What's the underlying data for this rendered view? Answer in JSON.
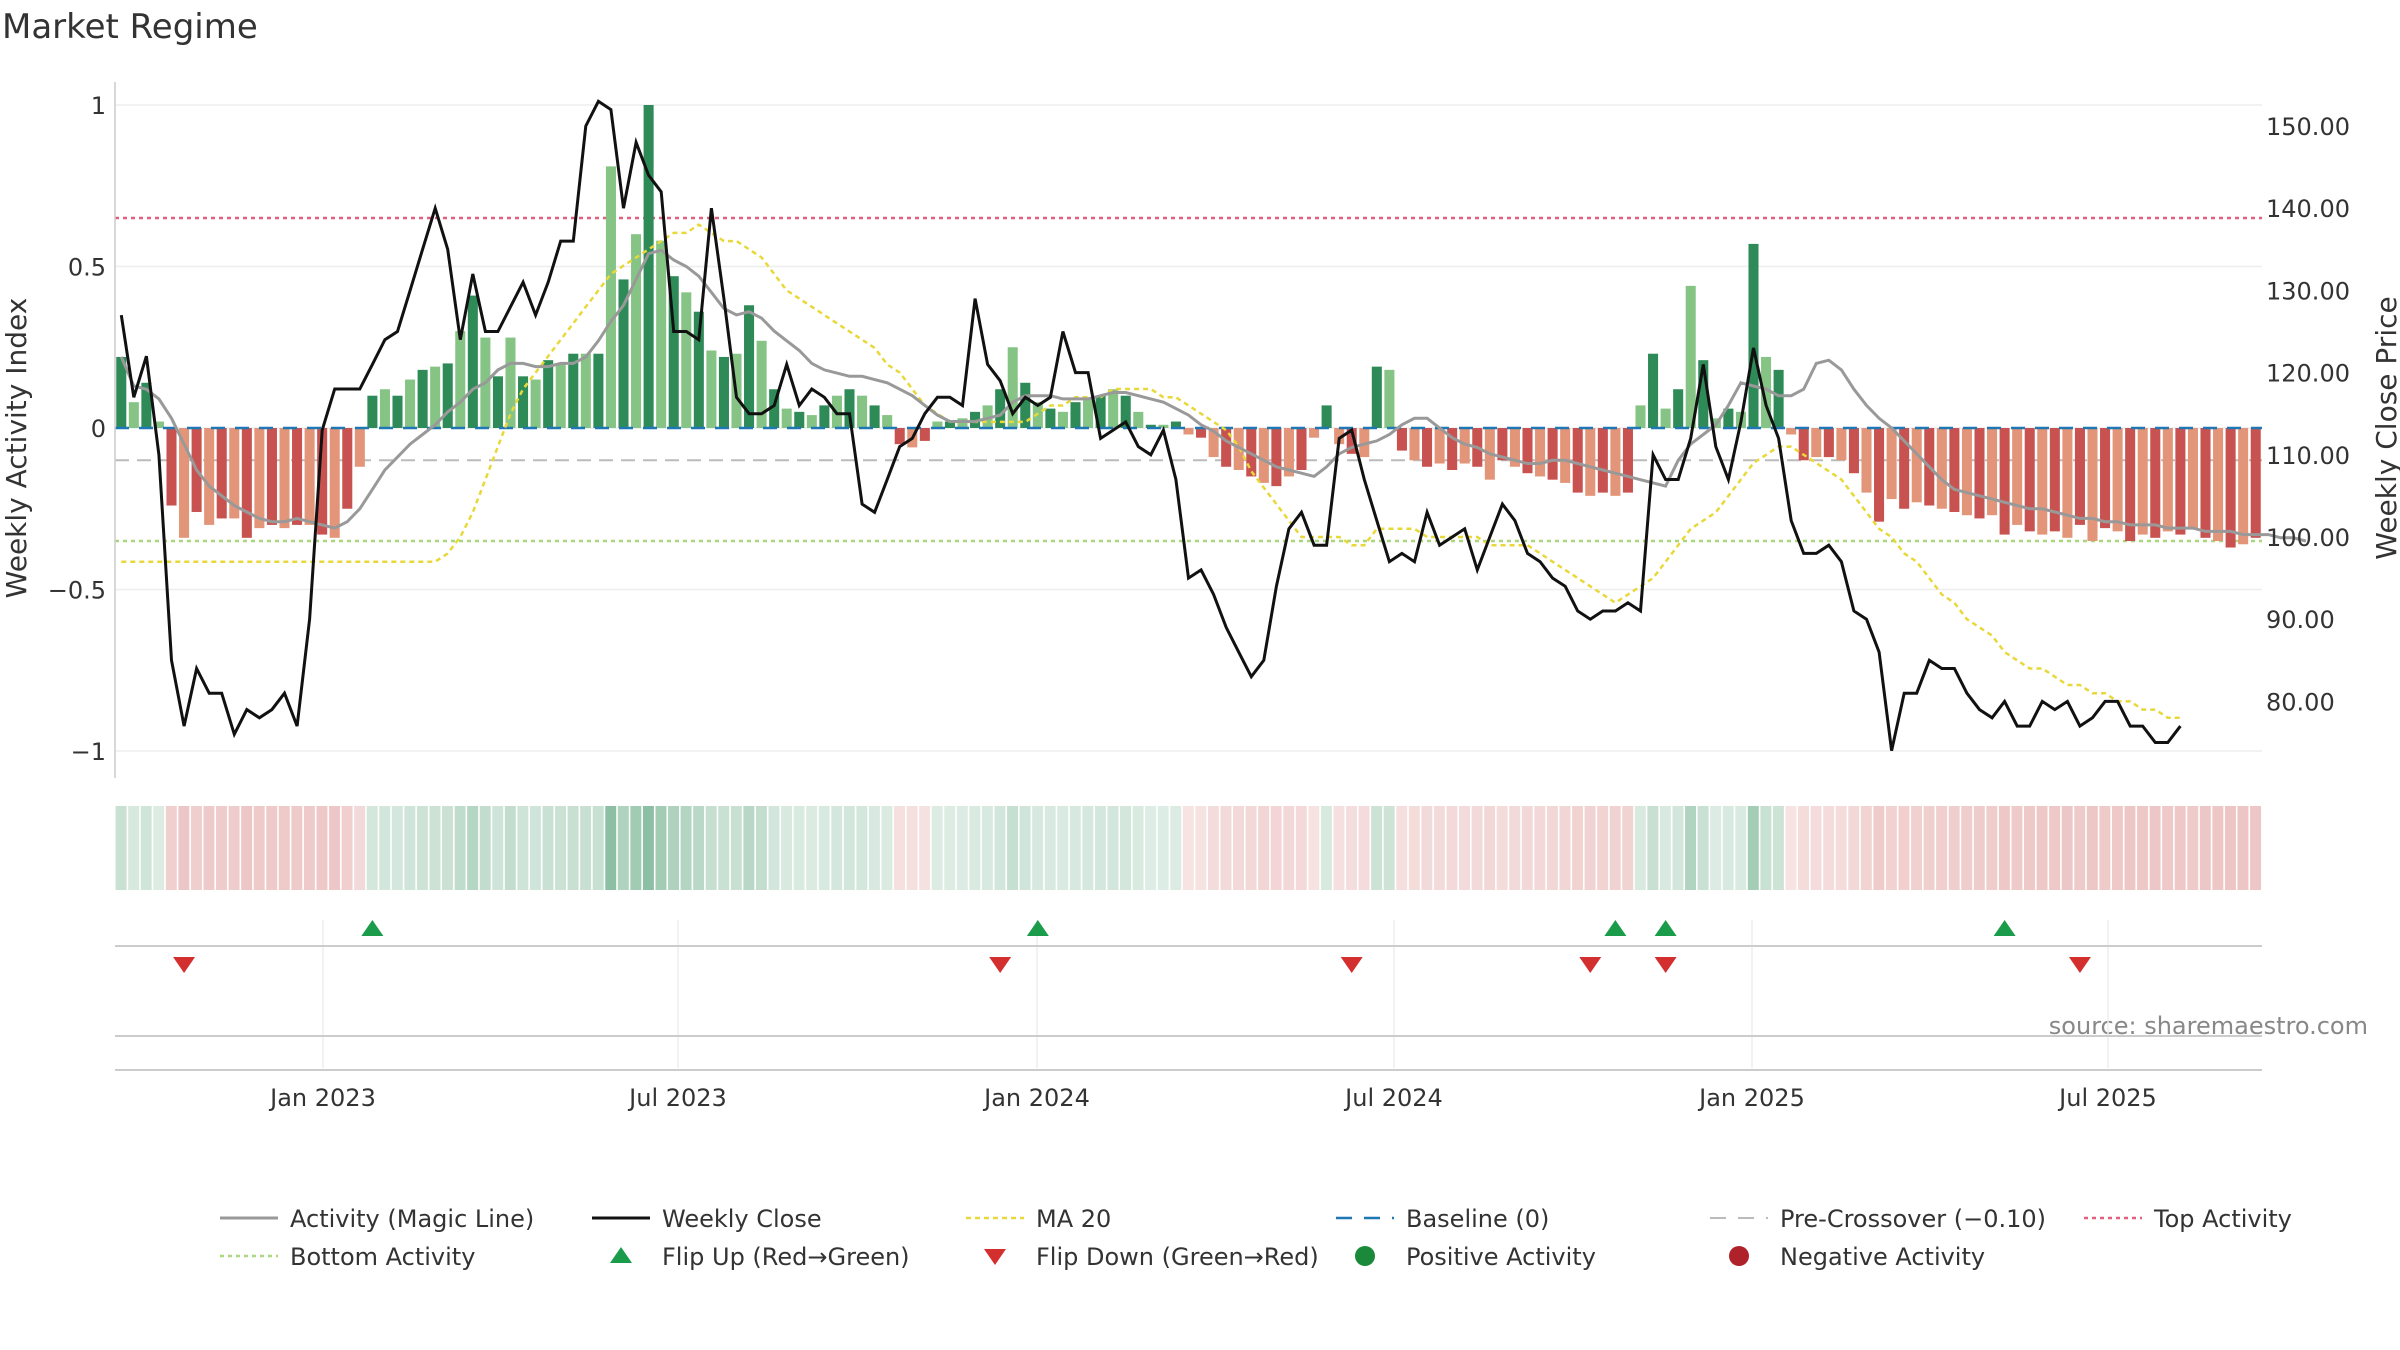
{
  "title": "Market Regime",
  "source": "source: sharemaestro.com",
  "colors": {
    "pos_strong": "#2e8b57",
    "pos_light": "#86c486",
    "neg_strong": "#c85250",
    "neg_light": "#e3957a",
    "close": "#111111",
    "magic": "#999999",
    "ma20": "#e8d83a",
    "baseline": "#1f77b4",
    "pre_cross": "#bbbbbb",
    "top": "#e0607e",
    "bottom": "#a8d87a",
    "flip_up": "#1a9c4a",
    "flip_down": "#d32f2f"
  },
  "chart_data": {
    "type": "bar",
    "x_labels": [
      "Jan 2023",
      "Jul 2023",
      "Jan 2024",
      "Jul 2024",
      "Jan 2025",
      "Jul 2025"
    ],
    "y_left": {
      "label": "Weekly Activity Index",
      "range": [
        -1.1,
        1.1
      ],
      "ticks": [
        {
          "v": 1,
          "t": "1"
        },
        {
          "v": 0.5,
          "t": "0.5"
        },
        {
          "v": 0,
          "t": "0"
        },
        {
          "v": -0.5,
          "t": "−0.5"
        },
        {
          "v": -1,
          "t": "−1"
        }
      ]
    },
    "y_right": {
      "label": "Weekly Close Price",
      "range": [
        70,
        153
      ],
      "ticks": [
        "150.00",
        "140.00",
        "130.00",
        "120.00",
        "110.00",
        "100.00",
        "90.00",
        "80.00"
      ]
    },
    "thresholds": {
      "top": 0.65,
      "bottom": -0.35,
      "pre_crossover": -0.1,
      "baseline": 0
    },
    "activity": [
      0.22,
      0.08,
      0.14,
      0.02,
      -0.24,
      -0.34,
      -0.26,
      -0.3,
      -0.28,
      -0.28,
      -0.34,
      -0.31,
      -0.3,
      -0.31,
      -0.3,
      -0.3,
      -0.33,
      -0.34,
      -0.25,
      -0.12,
      0.1,
      0.12,
      0.1,
      0.15,
      0.18,
      0.19,
      0.2,
      0.3,
      0.41,
      0.28,
      0.16,
      0.28,
      0.16,
      0.15,
      0.21,
      0.2,
      0.23,
      0.23,
      0.23,
      0.81,
      0.46,
      0.6,
      1.0,
      0.58,
      0.47,
      0.42,
      0.36,
      0.24,
      0.22,
      0.23,
      0.38,
      0.27,
      0.12,
      0.06,
      0.05,
      0.04,
      0.07,
      0.1,
      0.12,
      0.1,
      0.07,
      0.04,
      -0.05,
      -0.06,
      -0.04,
      0.02,
      0.02,
      0.03,
      0.05,
      0.07,
      0.12,
      0.25,
      0.14,
      0.08,
      0.06,
      0.05,
      0.08,
      0.09,
      0.1,
      0.12,
      0.1,
      0.05,
      0.01,
      0.01,
      0.02,
      -0.02,
      -0.03,
      -0.09,
      -0.12,
      -0.13,
      -0.15,
      -0.17,
      -0.18,
      -0.15,
      -0.13,
      -0.03,
      0.07,
      -0.05,
      -0.08,
      -0.09,
      0.19,
      0.18,
      -0.07,
      -0.1,
      -0.12,
      -0.11,
      -0.13,
      -0.11,
      -0.12,
      -0.16,
      -0.1,
      -0.12,
      -0.14,
      -0.15,
      -0.16,
      -0.17,
      -0.2,
      -0.21,
      -0.2,
      -0.21,
      -0.2,
      0.07,
      0.23,
      0.06,
      0.12,
      0.44,
      0.21,
      0.03,
      0.06,
      0.05,
      0.57,
      0.22,
      0.18,
      -0.02,
      -0.1,
      -0.09,
      -0.09,
      -0.1,
      -0.14,
      -0.2,
      -0.29,
      -0.22,
      -0.25,
      -0.23,
      -0.24,
      -0.25,
      -0.26,
      -0.27,
      -0.28,
      -0.27,
      -0.33,
      -0.3,
      -0.32,
      -0.33,
      -0.32,
      -0.34,
      -0.3,
      -0.35,
      -0.31,
      -0.32,
      -0.35,
      -0.33,
      -0.34,
      -0.32,
      -0.33,
      -0.31,
      -0.34,
      -0.35,
      -0.37,
      -0.36,
      -0.34
    ],
    "weekly_close": [
      127,
      117,
      122,
      110,
      85,
      77,
      84,
      81,
      81,
      76,
      79,
      78,
      79,
      81,
      77,
      90,
      113,
      118,
      118,
      118,
      121,
      124,
      125,
      130,
      135,
      140,
      135,
      124,
      132,
      125,
      125,
      128,
      131,
      127,
      131,
      136,
      136,
      150,
      153,
      152,
      140,
      148,
      144,
      142,
      125,
      125,
      124,
      140,
      129,
      117,
      115,
      115,
      116,
      121,
      116,
      118,
      117,
      115,
      115,
      104,
      103,
      107,
      111,
      112,
      115,
      117,
      117,
      116,
      129,
      121,
      119,
      115,
      117,
      116,
      117,
      125,
      120,
      120,
      112,
      113,
      114,
      111,
      110,
      113,
      107,
      95,
      96,
      93,
      89,
      86,
      83,
      85,
      94,
      101,
      103,
      99,
      99,
      112,
      113,
      107,
      102,
      97,
      98,
      97,
      103,
      99,
      100,
      101,
      96,
      100,
      104,
      102,
      98,
      97,
      95,
      94,
      91,
      90,
      91,
      91,
      92,
      91,
      110,
      107,
      107,
      112,
      121,
      111,
      107,
      114,
      123,
      116,
      112,
      102,
      98,
      98,
      99,
      97,
      91,
      90,
      86,
      74,
      81,
      81,
      85,
      84,
      84,
      81,
      79,
      78,
      80,
      77,
      77,
      80,
      79,
      80,
      77,
      78,
      80,
      80,
      77,
      77,
      75,
      75,
      77
    ],
    "magic_line": [
      0.22,
      0.13,
      0.12,
      0.09,
      0.03,
      -0.05,
      -0.13,
      -0.18,
      -0.21,
      -0.24,
      -0.26,
      -0.28,
      -0.29,
      -0.29,
      -0.28,
      -0.29,
      -0.3,
      -0.31,
      -0.29,
      -0.25,
      -0.19,
      -0.13,
      -0.09,
      -0.05,
      -0.02,
      0.01,
      0.05,
      0.08,
      0.12,
      0.14,
      0.18,
      0.2,
      0.2,
      0.19,
      0.19,
      0.2,
      0.2,
      0.22,
      0.27,
      0.33,
      0.38,
      0.46,
      0.54,
      0.55,
      0.52,
      0.5,
      0.47,
      0.42,
      0.37,
      0.35,
      0.36,
      0.34,
      0.3,
      0.27,
      0.24,
      0.2,
      0.18,
      0.17,
      0.16,
      0.16,
      0.15,
      0.14,
      0.12,
      0.1,
      0.07,
      0.04,
      0.02,
      0.02,
      0.02,
      0.03,
      0.04,
      0.08,
      0.1,
      0.1,
      0.1,
      0.09,
      0.09,
      0.09,
      0.1,
      0.11,
      0.11,
      0.1,
      0.09,
      0.08,
      0.06,
      0.04,
      0.01,
      -0.01,
      -0.04,
      -0.06,
      -0.08,
      -0.1,
      -0.12,
      -0.13,
      -0.14,
      -0.15,
      -0.12,
      -0.08,
      -0.06,
      -0.05,
      -0.04,
      -0.02,
      0.01,
      0.03,
      0.03,
      0.0,
      -0.03,
      -0.05,
      -0.06,
      -0.08,
      -0.09,
      -0.1,
      -0.11,
      -0.11,
      -0.1,
      -0.1,
      -0.11,
      -0.12,
      -0.13,
      -0.14,
      -0.15,
      -0.16,
      -0.17,
      -0.18,
      -0.1,
      -0.05,
      -0.02,
      0.01,
      0.07,
      0.14,
      0.13,
      0.12,
      0.1,
      0.1,
      0.12,
      0.2,
      0.21,
      0.18,
      0.12,
      0.07,
      0.03,
      0.0,
      -0.04,
      -0.08,
      -0.12,
      -0.16,
      -0.19,
      -0.2,
      -0.21,
      -0.22,
      -0.23,
      -0.24,
      -0.25,
      -0.25,
      -0.26,
      -0.27,
      -0.28,
      -0.28,
      -0.29,
      -0.29,
      -0.3,
      -0.3,
      -0.3,
      -0.31,
      -0.31,
      -0.31,
      -0.32,
      -0.32,
      -0.32,
      -0.33,
      -0.33,
      -0.33,
      -0.34,
      -0.34,
      -0.35
    ],
    "ma20": [
      97,
      97,
      97,
      97,
      97,
      97,
      97,
      97,
      97,
      97,
      97,
      97,
      97,
      97,
      97,
      97,
      97,
      97,
      97,
      97,
      97,
      97,
      97,
      97,
      97,
      97,
      98,
      100,
      103,
      107,
      111,
      115,
      118,
      120,
      122,
      124,
      126,
      128,
      130,
      132,
      133,
      134,
      135,
      136,
      137,
      137,
      138,
      137,
      136,
      136,
      135,
      134,
      132,
      130,
      129,
      128,
      127,
      126,
      125,
      124,
      123,
      121,
      120,
      118,
      116,
      115,
      114,
      114,
      114,
      114,
      114,
      114,
      114,
      115,
      116,
      116,
      117,
      117,
      117,
      118,
      118,
      118,
      118,
      117,
      117,
      116,
      115,
      114,
      113,
      111,
      108,
      106,
      104,
      102,
      100,
      100,
      100,
      100,
      99,
      99,
      101,
      101,
      101,
      101,
      100,
      100,
      100,
      100,
      100,
      99,
      99,
      99,
      99,
      98,
      97,
      96,
      95,
      94,
      93,
      92,
      93,
      94,
      95,
      97,
      99,
      101,
      102,
      103,
      105,
      107,
      109,
      110,
      111,
      111,
      110,
      109,
      108,
      107,
      105,
      103,
      101,
      100,
      98,
      97,
      95,
      93,
      92,
      90,
      89,
      88,
      86,
      85,
      84,
      84,
      83,
      82,
      82,
      81,
      81,
      80,
      80,
      79,
      79,
      78,
      78
    ],
    "flip_up": [
      20,
      73,
      119,
      123,
      150
    ],
    "flip_down": [
      5,
      70,
      98,
      117,
      123,
      156
    ]
  },
  "legend": [
    {
      "key": "magic",
      "label": "Activity (Magic Line)"
    },
    {
      "key": "close",
      "label": "Weekly Close"
    },
    {
      "key": "ma20",
      "label": "MA 20"
    },
    {
      "key": "baseline",
      "label": "Baseline (0)"
    },
    {
      "key": "pre_cross",
      "label": "Pre-Crossover (−0.10)"
    },
    {
      "key": "top",
      "label": "Top Activity"
    },
    {
      "key": "bottom",
      "label": "Bottom Activity"
    },
    {
      "key": "flip_up",
      "label": "Flip Up (Red→Green)"
    },
    {
      "key": "flip_down",
      "label": "Flip Down (Green→Red)"
    },
    {
      "key": "positive",
      "label": "Positive Activity"
    },
    {
      "key": "negative",
      "label": "Negative Activity"
    }
  ]
}
